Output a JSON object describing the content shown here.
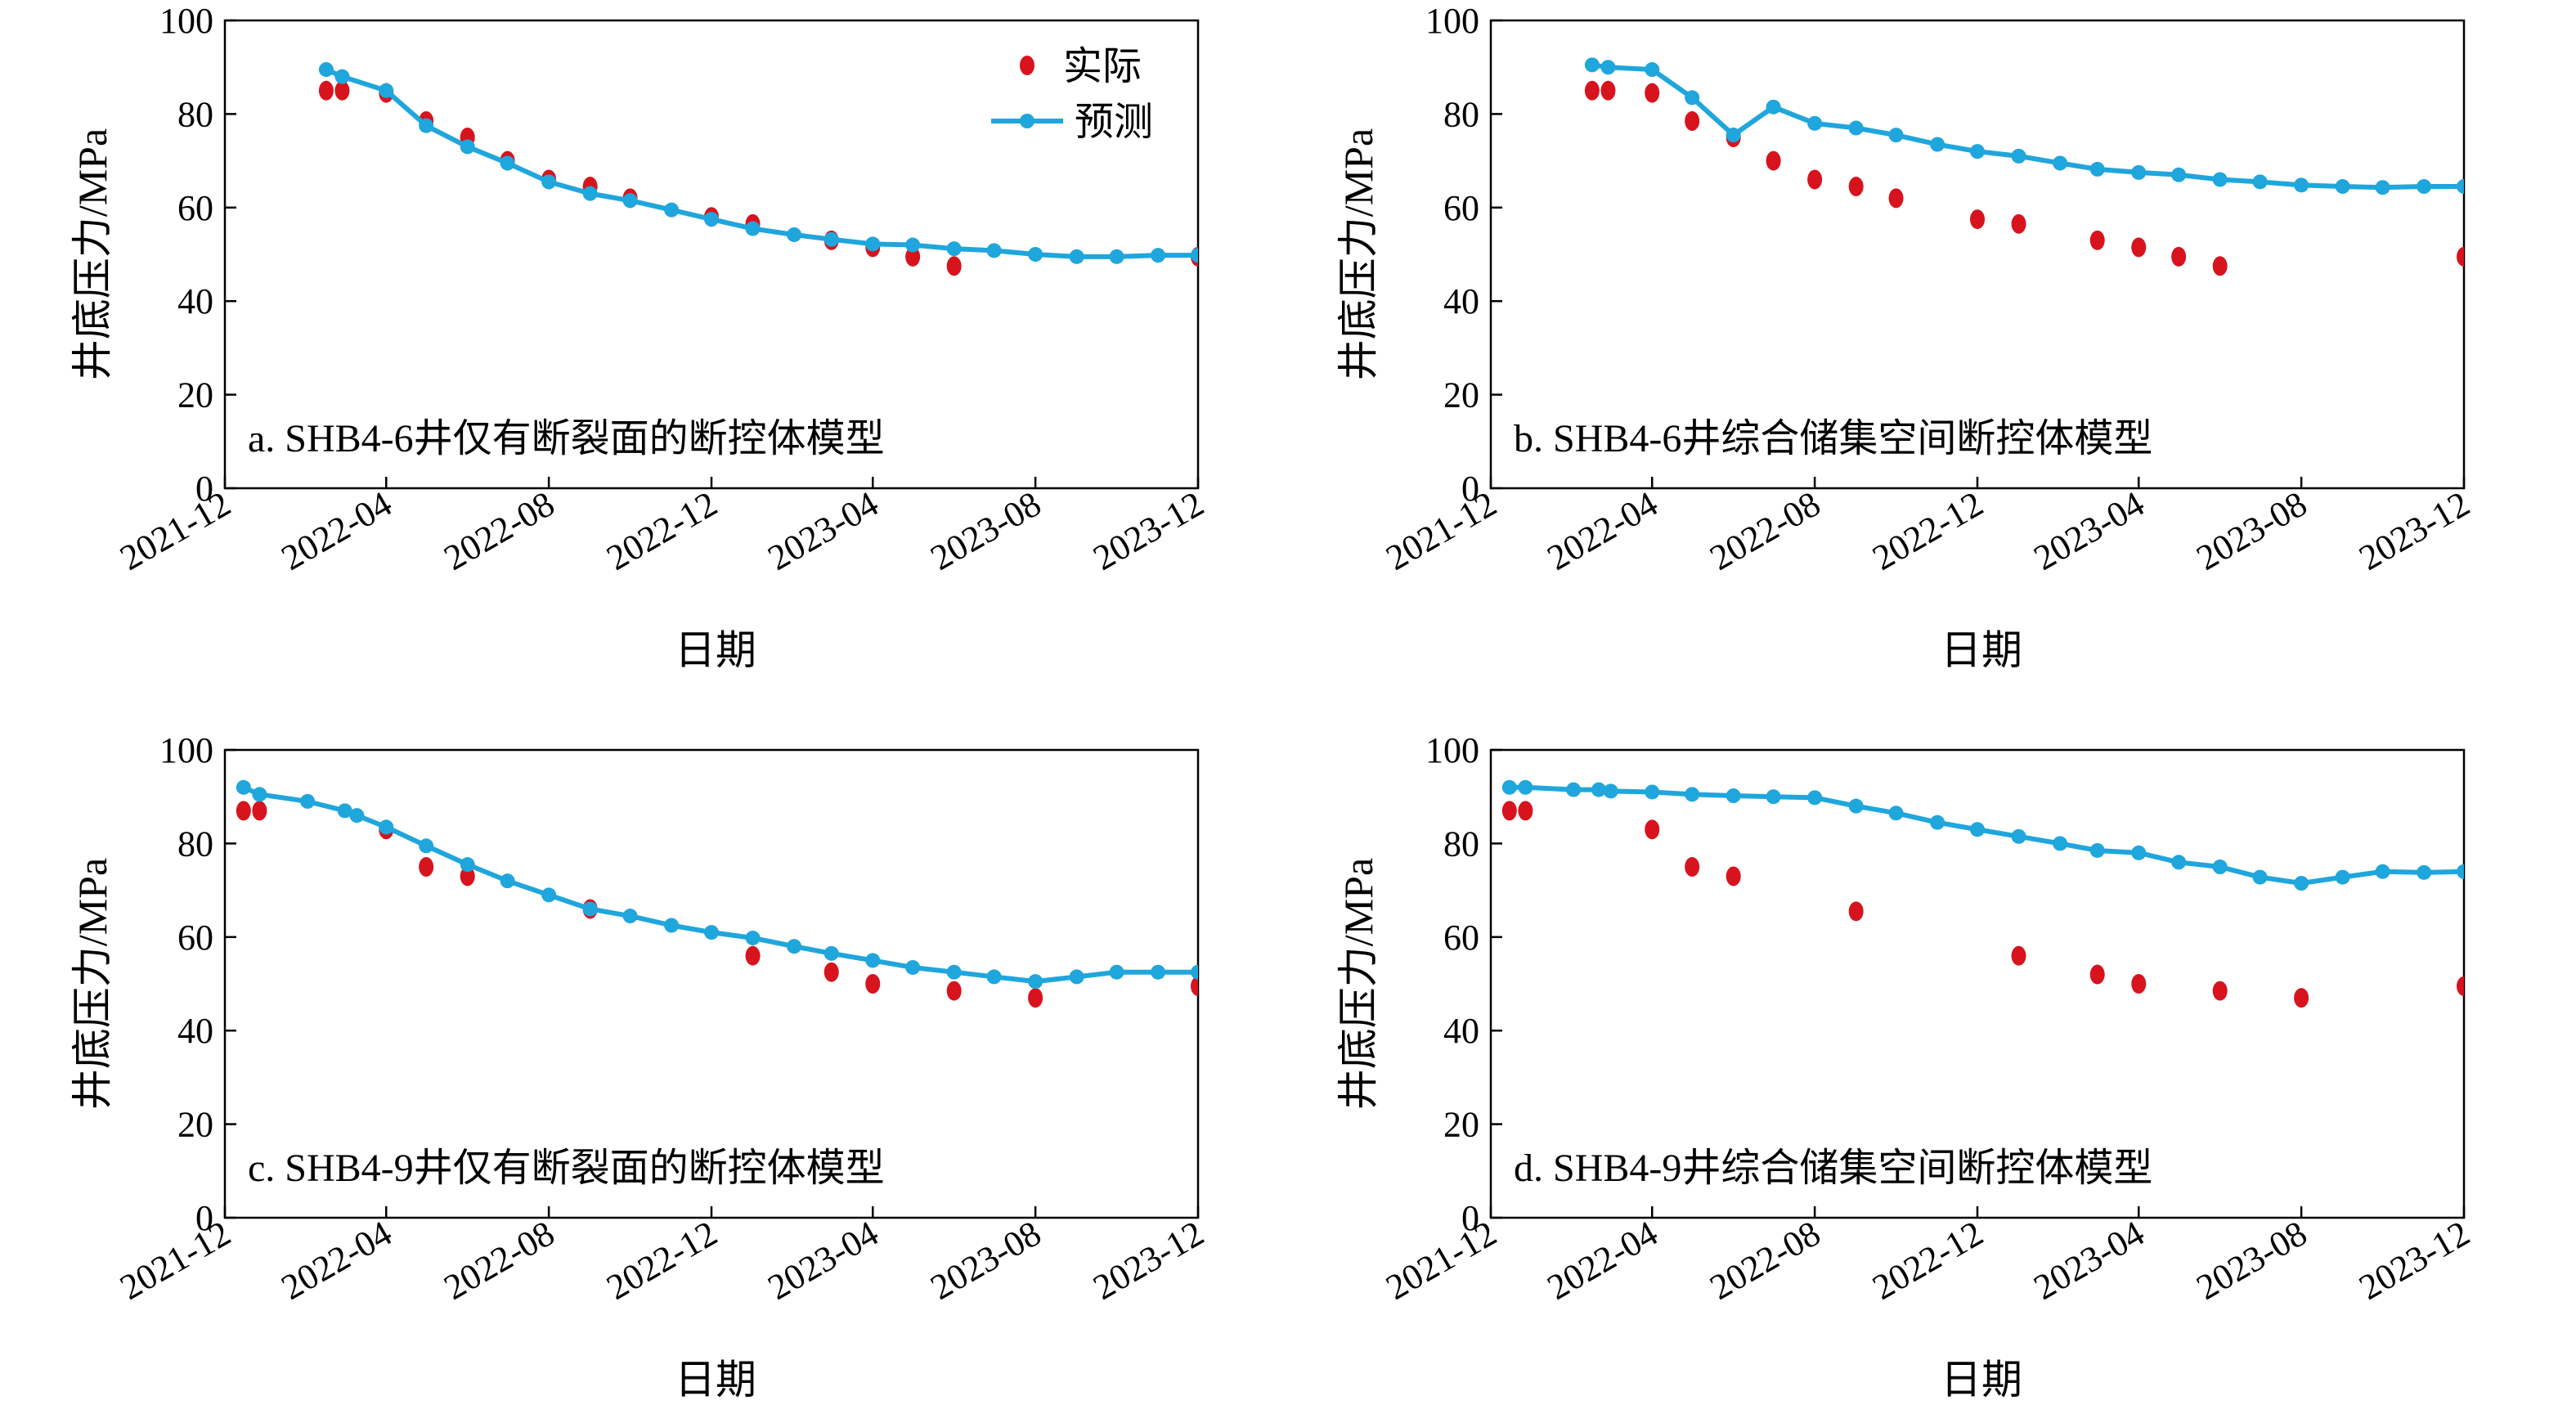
{
  "legend": {
    "actual": "实际",
    "predicted": "预测"
  },
  "colors": {
    "actual": "#d7141e",
    "predicted": "#1fa6dc",
    "axis": "#000000"
  },
  "chart_data": [
    {
      "type": "line",
      "annotation": "a. SHB4-6井仅有断裂面的断控体模型",
      "xlabel": "日期",
      "ylabel": "井底压力/MPa",
      "xlim": [
        "2021-12-01",
        "2023-12-01"
      ],
      "ylim": [
        0,
        100
      ],
      "x_ticks": [
        "2021-12",
        "2022-04",
        "2022-08",
        "2022-12",
        "2023-04",
        "2023-08",
        "2023-12"
      ],
      "y_ticks": [
        0,
        20,
        40,
        60,
        80,
        100
      ],
      "legend_position": "top-right",
      "series": [
        {
          "name": "实际",
          "kind": "scatter",
          "x": [
            "2022-02-15",
            "2022-02-27",
            "2022-04-01",
            "2022-05-01",
            "2022-06-01",
            "2022-07-01",
            "2022-08-01",
            "2022-09-01",
            "2022-10-01",
            "2022-12-01",
            "2023-01-01",
            "2023-03-01",
            "2023-04-01",
            "2023-05-01",
            "2023-06-01",
            "2023-12-01"
          ],
          "y": [
            85,
            85,
            84.5,
            78.5,
            75,
            70,
            66,
            64.5,
            62,
            58,
            56.5,
            53,
            51.5,
            49.5,
            47.5,
            49.5
          ]
        },
        {
          "name": "预测",
          "kind": "line",
          "x": [
            "2022-02-15",
            "2022-02-27",
            "2022-04-01",
            "2022-05-01",
            "2022-06-01",
            "2022-07-01",
            "2022-08-01",
            "2022-09-01",
            "2022-10-01",
            "2022-11-01",
            "2022-12-01",
            "2023-01-01",
            "2023-02-01",
            "2023-03-01",
            "2023-04-01",
            "2023-05-01",
            "2023-06-01",
            "2023-07-01",
            "2023-08-01",
            "2023-09-01",
            "2023-10-01",
            "2023-11-01",
            "2023-12-01"
          ],
          "y": [
            89.5,
            88,
            85,
            77.5,
            73,
            69.5,
            65.5,
            63,
            61.5,
            59.5,
            57.5,
            55.5,
            54.2,
            53.2,
            52.2,
            52,
            51.2,
            50.8,
            50,
            49.5,
            49.5,
            49.8,
            49.8
          ]
        }
      ]
    },
    {
      "type": "line",
      "annotation": "b. SHB4-6井综合储集空间断控体模型",
      "xlabel": "日期",
      "ylabel": "井底压力/MPa",
      "xlim": [
        "2021-12-01",
        "2023-12-01"
      ],
      "ylim": [
        0,
        100
      ],
      "x_ticks": [
        "2021-12",
        "2022-04",
        "2022-08",
        "2022-12",
        "2023-04",
        "2023-08",
        "2023-12"
      ],
      "y_ticks": [
        0,
        20,
        40,
        60,
        80,
        100
      ],
      "series": [
        {
          "name": "实际",
          "kind": "scatter",
          "x": [
            "2022-02-15",
            "2022-02-27",
            "2022-04-01",
            "2022-05-01",
            "2022-06-01",
            "2022-07-01",
            "2022-08-01",
            "2022-09-01",
            "2022-10-01",
            "2022-12-01",
            "2023-01-01",
            "2023-03-01",
            "2023-04-01",
            "2023-05-01",
            "2023-06-01",
            "2023-12-01"
          ],
          "y": [
            85,
            85,
            84.5,
            78.5,
            75,
            70,
            66,
            64.5,
            62,
            57.5,
            56.5,
            53,
            51.5,
            49.5,
            47.5,
            49.5
          ]
        },
        {
          "name": "预测",
          "kind": "line",
          "x": [
            "2022-02-15",
            "2022-02-27",
            "2022-04-01",
            "2022-05-01",
            "2022-06-01",
            "2022-07-01",
            "2022-08-01",
            "2022-09-01",
            "2022-10-01",
            "2022-11-01",
            "2022-12-01",
            "2023-01-01",
            "2023-02-01",
            "2023-03-01",
            "2023-04-01",
            "2023-05-01",
            "2023-06-01",
            "2023-07-01",
            "2023-08-01",
            "2023-09-01",
            "2023-10-01",
            "2023-11-01",
            "2023-12-01"
          ],
          "y": [
            90.5,
            90,
            89.5,
            83.5,
            75.5,
            81.5,
            78,
            77,
            75.5,
            73.5,
            72,
            71,
            69.5,
            68.2,
            67.5,
            67,
            66,
            65.5,
            64.8,
            64.5,
            64.3,
            64.5,
            64.5
          ]
        }
      ]
    },
    {
      "type": "line",
      "annotation": "c. SHB4-9井仅有断裂面的断控体模型",
      "xlabel": "日期",
      "ylabel": "井底压力/MPa",
      "xlim": [
        "2021-12-01",
        "2023-12-01"
      ],
      "ylim": [
        0,
        100
      ],
      "x_ticks": [
        "2021-12",
        "2022-04",
        "2022-08",
        "2022-12",
        "2023-04",
        "2023-08",
        "2023-12"
      ],
      "y_ticks": [
        0,
        20,
        40,
        60,
        80,
        100
      ],
      "series": [
        {
          "name": "实际",
          "kind": "scatter",
          "x": [
            "2021-12-15",
            "2021-12-27",
            "2022-04-01",
            "2022-05-01",
            "2022-06-01",
            "2022-09-01",
            "2023-01-01",
            "2023-03-01",
            "2023-04-01",
            "2023-06-01",
            "2023-08-01",
            "2023-12-01"
          ],
          "y": [
            87,
            87,
            83,
            75,
            73,
            66,
            56,
            52.5,
            50,
            48.5,
            47,
            49.5
          ]
        },
        {
          "name": "预测",
          "kind": "line",
          "x": [
            "2021-12-15",
            "2021-12-27",
            "2022-02-01",
            "2022-03-01",
            "2022-03-10",
            "2022-04-01",
            "2022-05-01",
            "2022-06-01",
            "2022-07-01",
            "2022-08-01",
            "2022-09-01",
            "2022-10-01",
            "2022-11-01",
            "2022-12-01",
            "2023-01-01",
            "2023-02-01",
            "2023-03-01",
            "2023-04-01",
            "2023-05-01",
            "2023-06-01",
            "2023-07-01",
            "2023-08-01",
            "2023-09-01",
            "2023-10-01",
            "2023-11-01",
            "2023-12-01"
          ],
          "y": [
            92,
            90.5,
            89,
            87,
            86,
            83.5,
            79.5,
            75.5,
            72,
            69,
            66,
            64.5,
            62.5,
            61,
            59.8,
            58,
            56.5,
            55,
            53.5,
            52.5,
            51.5,
            50.5,
            51.5,
            52.5,
            52.5,
            52.5
          ]
        }
      ]
    },
    {
      "type": "line",
      "annotation": "d. SHB4-9井综合储集空间断控体模型",
      "xlabel": "日期",
      "ylabel": "井底压力/MPa",
      "xlim": [
        "2021-12-01",
        "2023-12-01"
      ],
      "ylim": [
        0,
        100
      ],
      "x_ticks": [
        "2021-12",
        "2022-04",
        "2022-08",
        "2022-12",
        "2023-04",
        "2023-08",
        "2023-12"
      ],
      "y_ticks": [
        0,
        20,
        40,
        60,
        80,
        100
      ],
      "series": [
        {
          "name": "实际",
          "kind": "scatter",
          "x": [
            "2021-12-15",
            "2021-12-27",
            "2022-04-01",
            "2022-05-01",
            "2022-06-01",
            "2022-09-01",
            "2023-01-01",
            "2023-03-01",
            "2023-04-01",
            "2023-06-01",
            "2023-08-01",
            "2023-12-01"
          ],
          "y": [
            87,
            87,
            83,
            75,
            73,
            65.5,
            56,
            52,
            50,
            48.5,
            47,
            49.5
          ]
        },
        {
          "name": "预测",
          "kind": "line",
          "x": [
            "2021-12-15",
            "2021-12-27",
            "2022-02-01",
            "2022-02-20",
            "2022-03-01",
            "2022-04-01",
            "2022-05-01",
            "2022-06-01",
            "2022-07-01",
            "2022-08-01",
            "2022-09-01",
            "2022-10-01",
            "2022-11-01",
            "2022-12-01",
            "2023-01-01",
            "2023-02-01",
            "2023-03-01",
            "2023-04-01",
            "2023-05-01",
            "2023-06-01",
            "2023-07-01",
            "2023-08-01",
            "2023-09-01",
            "2023-10-01",
            "2023-11-01",
            "2023-12-01"
          ],
          "y": [
            92,
            92,
            91.5,
            91.5,
            91.2,
            91,
            90.5,
            90.2,
            90,
            89.8,
            88,
            86.5,
            84.5,
            83,
            81.5,
            80,
            78.5,
            78,
            76,
            75,
            72.8,
            71.5,
            72.8,
            74,
            73.8,
            74
          ]
        }
      ]
    }
  ]
}
